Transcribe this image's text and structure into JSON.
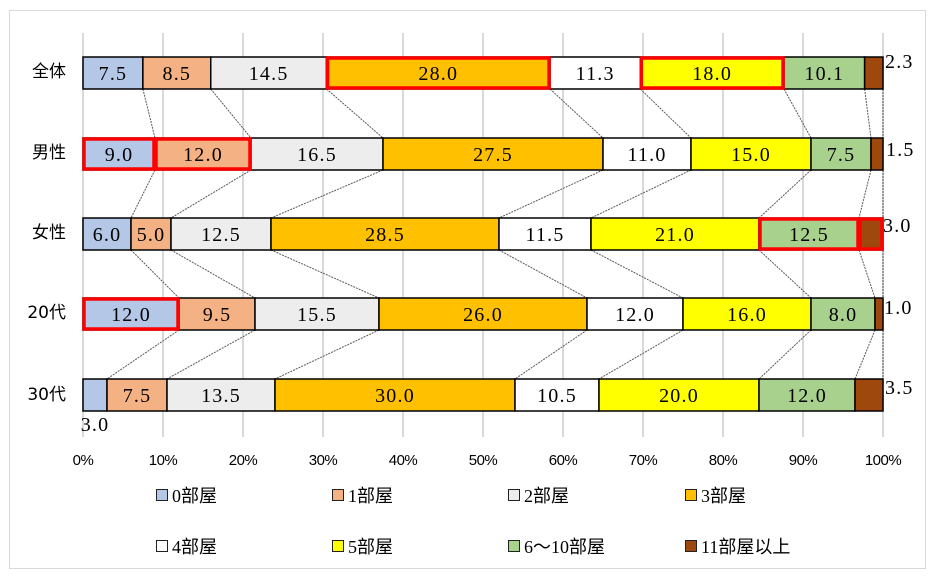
{
  "chart_data": {
    "type": "bar",
    "orientation": "horizontal",
    "stacking": "percent",
    "title": "",
    "xlabel": "",
    "ylabel": "",
    "xlim": [
      0,
      100
    ],
    "grid": true,
    "legend_position": "bottom",
    "categories": [
      "全体",
      "男性",
      "女性",
      "20代",
      "30代"
    ],
    "x_ticks": [
      "0%",
      "10%",
      "20%",
      "30%",
      "40%",
      "50%",
      "60%",
      "70%",
      "80%",
      "90%",
      "100%"
    ],
    "series": [
      {
        "name": "0部屋",
        "color": "#B4C7E7",
        "values": [
          7.5,
          9.0,
          6.0,
          12.0,
          3.0
        ]
      },
      {
        "name": "1部屋",
        "color": "#F4B183",
        "values": [
          8.5,
          12.0,
          5.0,
          9.5,
          7.5
        ]
      },
      {
        "name": "2部屋",
        "color": "#EDEDED",
        "values": [
          14.5,
          16.5,
          12.5,
          15.5,
          13.5
        ]
      },
      {
        "name": "3部屋",
        "color": "#FFC000",
        "values": [
          28.0,
          27.5,
          28.5,
          26.0,
          30.0
        ]
      },
      {
        "name": "4部屋",
        "color": "#FFFFFF",
        "values": [
          11.3,
          11.0,
          11.5,
          12.0,
          10.5
        ]
      },
      {
        "name": "5部屋",
        "color": "#FFFF00",
        "values": [
          18.0,
          15.0,
          21.0,
          16.0,
          20.0
        ]
      },
      {
        "name": "6～10部屋",
        "color": "#A9D18E",
        "values": [
          10.1,
          7.5,
          12.5,
          8.0,
          12.0
        ]
      },
      {
        "name": "11部屋以上",
        "color": "#9E480E",
        "values": [
          2.3,
          1.5,
          3.0,
          1.0,
          3.5
        ]
      }
    ],
    "highlights": [
      {
        "row": 0,
        "series": 3
      },
      {
        "row": 0,
        "series": 5
      },
      {
        "row": 1,
        "series": 0
      },
      {
        "row": 1,
        "series": 1
      },
      {
        "row": 2,
        "series": 6
      },
      {
        "row": 2,
        "series": 7
      },
      {
        "row": 3,
        "series": 0
      }
    ],
    "highlight_color": "#FF0000",
    "series_lines": true,
    "label_overrides": [
      {
        "row": 0,
        "series": 7,
        "x": 885,
        "y": 62,
        "anchor": "start"
      },
      {
        "row": 1,
        "series": 7,
        "x": 886,
        "y": 150,
        "anchor": "start"
      },
      {
        "row": 2,
        "series": 7,
        "x": 883,
        "y": 226,
        "anchor": "start"
      },
      {
        "row": 3,
        "series": 7,
        "x": 884,
        "y": 308,
        "anchor": "start"
      },
      {
        "row": 4,
        "series": 7,
        "x": 885,
        "y": 388,
        "anchor": "start"
      },
      {
        "row": 4,
        "series": 0,
        "x": 95,
        "y": 425,
        "anchor": "middle"
      }
    ]
  }
}
